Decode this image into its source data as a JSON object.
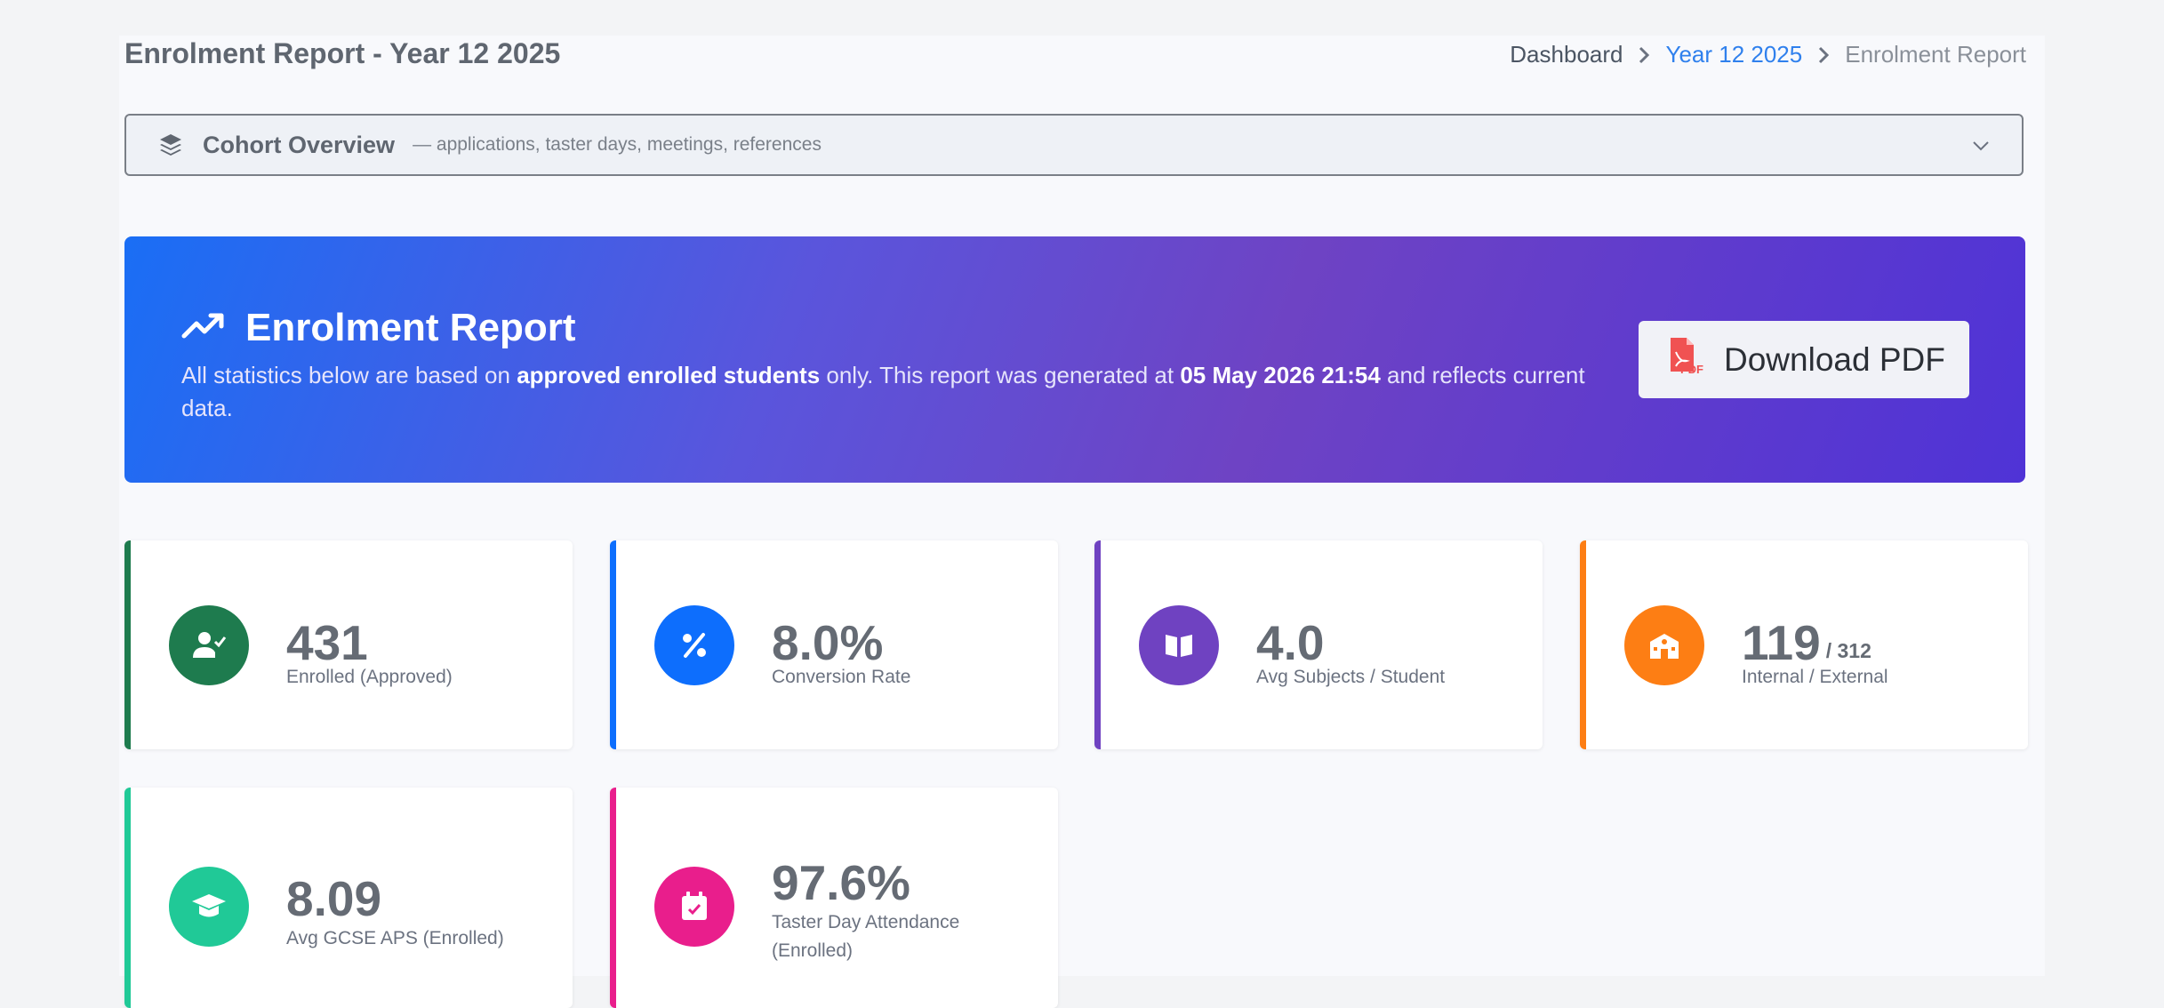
{
  "header": {
    "title": "Enrolment Report - Year 12 2025",
    "breadcrumb": [
      "Dashboard",
      "Year 12 2025",
      "Enrolment Report"
    ]
  },
  "cohort": {
    "title": "Cohort Overview",
    "subtitle": "— applications, taster days, meetings, references",
    "icon": "layers-icon"
  },
  "hero": {
    "title": "Enrolment Report",
    "text_prefix": "All statistics below are based on ",
    "text_bold1": "approved enrolled students",
    "text_mid": " only. This report was generated at ",
    "text_bold2": "05 May 2026 21:54",
    "text_suffix": " and reflects current data.",
    "download_label": "Download PDF"
  },
  "stats": [
    {
      "value": "431",
      "suffix": "",
      "label": "Enrolled (Approved)",
      "color": "#1e7b4e",
      "icon": "user-check-icon"
    },
    {
      "value": "8.0%",
      "suffix": "",
      "label": "Conversion Rate",
      "color": "#0d6efd",
      "icon": "percent-icon"
    },
    {
      "value": "4.0",
      "suffix": "",
      "label": "Avg Subjects / Student",
      "color": "#6f42c1",
      "icon": "book-open-icon"
    },
    {
      "value": "119",
      "suffix": "/ 312",
      "label": "Internal / External",
      "color": "#fd7e14",
      "icon": "school-icon"
    },
    {
      "value": "8.09",
      "suffix": "",
      "label": "Avg GCSE APS (Enrolled)",
      "color": "#20c997",
      "icon": "graduation-cap-icon"
    },
    {
      "value": "97.6%",
      "suffix": "",
      "label": "Taster Day Attendance (Enrolled)",
      "color": "#e91e8c",
      "icon": "calendar-check-icon"
    }
  ]
}
